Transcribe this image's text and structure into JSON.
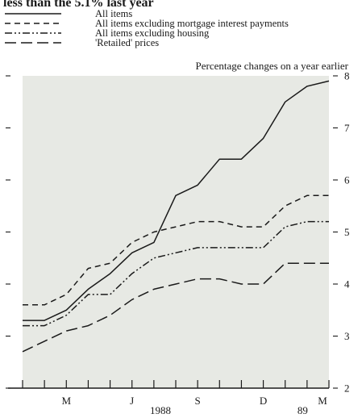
{
  "header": {
    "partial_title": "less than the 5.1% last year"
  },
  "chart_data": {
    "type": "line",
    "subtitle": "Percentage changes on a year earlier",
    "x_tick_labels": [
      "M",
      "J",
      "S",
      "D",
      "M"
    ],
    "x_group_labels": [
      "1988",
      "89"
    ],
    "y_tick_labels": [
      "2",
      "3",
      "4",
      "5",
      "6",
      "7",
      "8"
    ],
    "ylim": [
      2,
      8
    ],
    "grid": false,
    "legend_position": "top-left",
    "x_periods": [
      "Jan 1988",
      "Feb 1988",
      "Mar 1988",
      "Apr 1988",
      "May 1988",
      "Jun 1988",
      "Jul 1988",
      "Aug 1988",
      "Sep 1988",
      "Oct 1988",
      "Nov 1988",
      "Dec 1988",
      "Jan 1989",
      "Feb 1989",
      "Mar 1989"
    ],
    "series": [
      {
        "name": "All items",
        "dash": "solid",
        "values": [
          3.3,
          3.3,
          3.5,
          3.9,
          4.2,
          4.6,
          4.8,
          5.7,
          5.9,
          6.4,
          6.4,
          6.8,
          7.5,
          7.8,
          7.9
        ]
      },
      {
        "name": "All items excluding mortgage interest payments",
        "dash": "dashed",
        "values": [
          3.6,
          3.6,
          3.8,
          4.3,
          4.4,
          4.8,
          5.0,
          5.1,
          5.2,
          5.2,
          5.1,
          5.1,
          5.5,
          5.7,
          5.7
        ]
      },
      {
        "name": "All items excluding housing",
        "dash": "dash-dot-dot",
        "values": [
          3.2,
          3.2,
          3.4,
          3.8,
          3.8,
          4.2,
          4.5,
          4.6,
          4.7,
          4.7,
          4.7,
          4.7,
          5.1,
          5.2,
          5.2
        ]
      },
      {
        "name": "'Retailed' prices",
        "dash": "long-dash",
        "values": [
          2.7,
          2.9,
          3.1,
          3.2,
          3.4,
          3.7,
          3.9,
          4.0,
          4.1,
          4.1,
          4.0,
          4.0,
          4.4,
          4.4,
          4.4
        ]
      }
    ]
  },
  "colors": {
    "ink": "#1a1a1a",
    "plot_background": "#e7e9e4"
  }
}
